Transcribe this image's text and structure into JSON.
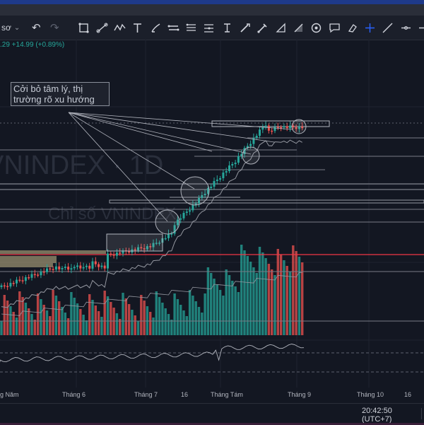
{
  "toolbar": {
    "symbol_fragment": "sơ",
    "undo_icon": "↶",
    "redo_icon": "↷",
    "tools": [
      "crosshair-square-icon",
      "trend-line-icon",
      "zigzag-icon",
      "text-icon",
      "brush-icon",
      "parallel-lines-icon",
      "fib-icon",
      "horizontal-lines-icon",
      "pitchfork-icon",
      "projection-icon",
      "pencil-icon",
      "ruler-icon",
      "angle-icon",
      "circle-icon",
      "comment-icon",
      "eraser-icon",
      "crosshair-icon",
      "line-tool-icon",
      "segment-icon",
      "arrow-right-icon"
    ]
  },
  "quote": {
    "text": ".29 +14.99 (+0.89%)",
    "color": "#26a69a"
  },
  "watermark": {
    "symbol": "VNINDEX · 1D",
    "name": "Chỉ số VNINDEX"
  },
  "annotation": {
    "text": "Cởi bỏ tâm lý, thị trường rõ xu hướng"
  },
  "x_axis": {
    "labels": [
      "g Năm",
      "Tháng 6",
      "Tháng 7",
      "16",
      "Tháng Tám",
      "Tháng 9",
      "Tháng 10",
      "16"
    ]
  },
  "status": {
    "clock": "20:42:50 (UTC+7)"
  },
  "colors": {
    "up": "#26a69a",
    "down": "#ef5350",
    "background": "#131722",
    "accent": "#2962ff"
  }
}
